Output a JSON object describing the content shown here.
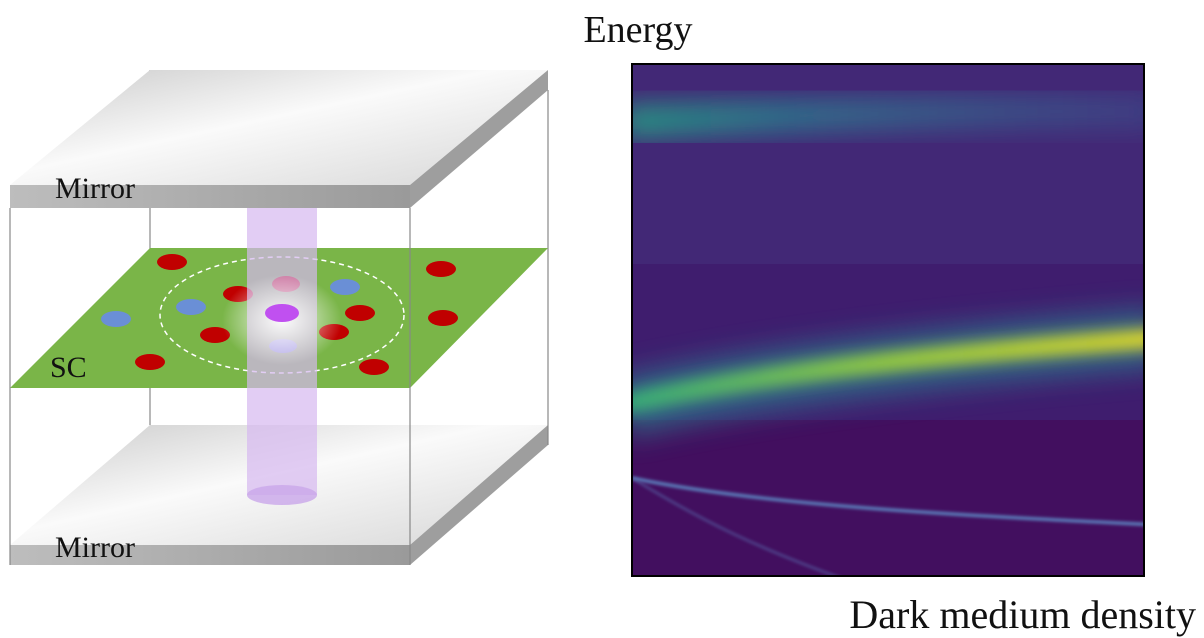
{
  "diagram": {
    "top_mirror": "Mirror",
    "plane": "SC",
    "bottom_mirror": "Mirror"
  },
  "plot": {
    "y_label": "Energy",
    "x_label": "Dark medium density"
  }
}
